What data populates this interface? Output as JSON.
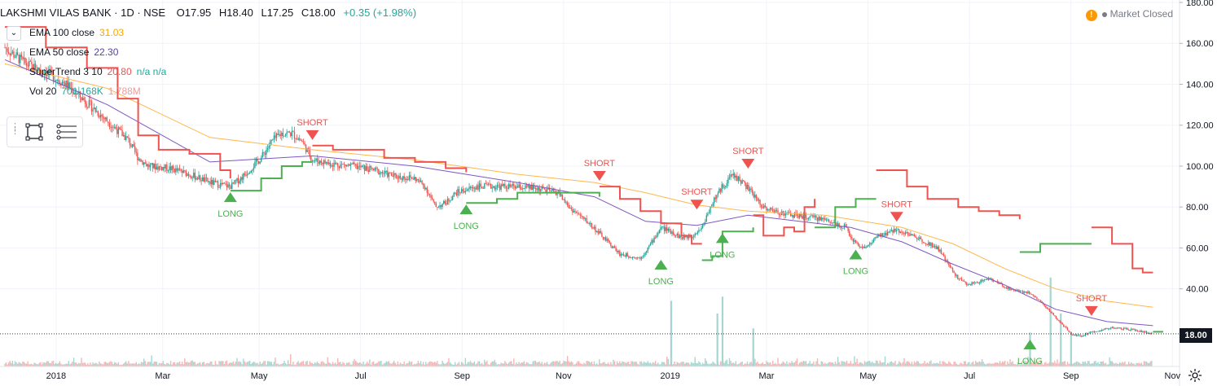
{
  "header": {
    "symbol": "LAKSHMI VILAS BANK · 1D · NSE",
    "open": "O17.95",
    "high": "H18.40",
    "low": "L17.25",
    "close": "C18.00",
    "change": "+0.35 (+1.98%)"
  },
  "indicators": [
    {
      "name": "EMA 100 close",
      "value": "31.03",
      "color": "#f6a800"
    },
    {
      "name": "EMA 50 close",
      "value": "22.30",
      "color": "#5b3fa6"
    },
    {
      "name": "SuperTrend 3 10",
      "value": "20.80",
      "extra": "n/a  n/a",
      "color": "#ef5350"
    },
    {
      "name": "Vol 20",
      "value": "701.168K",
      "extra": "1.788M",
      "color": "#26a69a",
      "extra_color": "#ef9a9a"
    }
  ],
  "market_status": "Market Closed",
  "last_price_label": "18.00",
  "colors": {
    "up": "#26a69a",
    "down": "#ef5350",
    "ema100": "#ffb74d",
    "ema50": "#7e57c2",
    "supertrend_down": "#ef5350",
    "supertrend_up": "#4caf50",
    "grid": "#f0f3fa"
  },
  "chart_data": {
    "type": "candlestick",
    "y_axis": {
      "ticks": [
        40,
        60,
        80,
        100,
        120,
        140,
        160,
        180
      ],
      "tick_labels": [
        "40.00",
        "60.00",
        "80.00",
        "100.00",
        "120.00",
        "140.00",
        "160.00",
        "180.00"
      ],
      "range": [
        14,
        180
      ]
    },
    "x_axis": {
      "tick_labels": [
        "2018",
        "Mar",
        "May",
        "Jul",
        "Sep",
        "Nov",
        "2019",
        "Mar",
        "May",
        "Jul",
        "Sep",
        "Nov"
      ]
    },
    "close_path": [
      [
        0,
        158
      ],
      [
        4,
        150
      ],
      [
        8,
        146
      ],
      [
        12,
        140
      ],
      [
        16,
        131
      ],
      [
        20,
        122
      ],
      [
        24,
        113
      ],
      [
        26,
        104
      ],
      [
        28,
        100
      ],
      [
        32,
        99
      ],
      [
        36,
        96
      ],
      [
        40,
        92
      ],
      [
        44,
        90
      ],
      [
        46,
        94
      ],
      [
        48,
        99
      ],
      [
        50,
        104
      ],
      [
        52,
        112
      ],
      [
        54,
        116
      ],
      [
        56,
        116
      ],
      [
        58,
        112
      ],
      [
        60,
        103
      ],
      [
        64,
        101
      ],
      [
        68,
        100
      ],
      [
        72,
        98
      ],
      [
        76,
        95
      ],
      [
        80,
        94
      ],
      [
        82,
        90
      ],
      [
        84,
        80
      ],
      [
        86,
        82
      ],
      [
        88,
        87
      ],
      [
        92,
        90
      ],
      [
        98,
        90
      ],
      [
        104,
        89
      ],
      [
        108,
        87
      ],
      [
        110,
        80
      ],
      [
        114,
        72
      ],
      [
        118,
        62
      ],
      [
        120,
        57
      ],
      [
        122,
        56
      ],
      [
        124,
        55
      ],
      [
        126,
        62
      ],
      [
        128,
        70
      ],
      [
        130,
        68
      ],
      [
        132,
        65
      ],
      [
        134,
        66
      ],
      [
        136,
        70
      ],
      [
        138,
        82
      ],
      [
        140,
        90
      ],
      [
        142,
        96
      ],
      [
        144,
        92
      ],
      [
        146,
        86
      ],
      [
        148,
        80
      ],
      [
        150,
        78
      ],
      [
        154,
        76
      ],
      [
        160,
        74
      ],
      [
        164,
        70
      ],
      [
        166,
        62
      ],
      [
        168,
        60
      ],
      [
        170,
        65
      ],
      [
        174,
        69
      ],
      [
        178,
        65
      ],
      [
        182,
        60
      ],
      [
        184,
        52
      ],
      [
        186,
        45
      ],
      [
        188,
        42
      ],
      [
        192,
        45
      ],
      [
        196,
        40
      ],
      [
        200,
        38
      ],
      [
        202,
        34
      ],
      [
        205,
        26
      ],
      [
        208,
        18
      ],
      [
        210,
        17
      ],
      [
        212,
        19
      ],
      [
        216,
        21
      ],
      [
        220,
        20
      ],
      [
        222,
        19
      ],
      [
        224,
        18
      ]
    ],
    "ema100": [
      [
        0,
        150
      ],
      [
        20,
        138
      ],
      [
        40,
        114
      ],
      [
        60,
        108
      ],
      [
        80,
        103
      ],
      [
        100,
        96
      ],
      [
        115,
        92
      ],
      [
        125,
        87
      ],
      [
        135,
        81
      ],
      [
        145,
        78
      ],
      [
        160,
        76
      ],
      [
        175,
        70
      ],
      [
        185,
        62
      ],
      [
        195,
        50
      ],
      [
        205,
        40
      ],
      [
        215,
        34
      ],
      [
        224,
        31
      ]
    ],
    "ema50": [
      [
        0,
        152
      ],
      [
        20,
        130
      ],
      [
        40,
        102
      ],
      [
        60,
        105
      ],
      [
        80,
        100
      ],
      [
        100,
        92
      ],
      [
        115,
        85
      ],
      [
        125,
        73
      ],
      [
        135,
        71
      ],
      [
        145,
        76
      ],
      [
        155,
        73
      ],
      [
        165,
        70
      ],
      [
        175,
        63
      ],
      [
        185,
        52
      ],
      [
        195,
        42
      ],
      [
        205,
        30
      ],
      [
        215,
        24
      ],
      [
        224,
        22
      ]
    ],
    "supertrend": [
      {
        "dir": "down",
        "pts": [
          [
            0,
            168
          ],
          [
            8,
            158
          ],
          [
            16,
            148
          ],
          [
            22,
            133
          ],
          [
            26,
            115
          ],
          [
            30,
            108
          ],
          [
            36,
            106
          ],
          [
            42,
            98
          ],
          [
            44,
            94
          ]
        ]
      },
      {
        "dir": "up",
        "pts": [
          [
            44,
            88
          ],
          [
            48,
            88
          ],
          [
            50,
            94
          ],
          [
            54,
            100
          ],
          [
            58,
            102
          ],
          [
            60,
            102
          ]
        ]
      },
      {
        "dir": "down",
        "pts": [
          [
            60,
            110
          ],
          [
            64,
            108
          ],
          [
            72,
            108
          ],
          [
            74,
            104
          ],
          [
            80,
            102
          ],
          [
            84,
            102
          ],
          [
            86,
            99
          ],
          [
            90,
            97
          ]
        ]
      },
      {
        "dir": "up",
        "pts": [
          [
            90,
            82
          ],
          [
            96,
            84
          ],
          [
            100,
            87
          ],
          [
            114,
            87
          ],
          [
            116,
            85
          ]
        ]
      },
      {
        "dir": "down",
        "pts": [
          [
            116,
            90
          ],
          [
            120,
            84
          ],
          [
            124,
            78
          ],
          [
            128,
            72
          ],
          [
            132,
            66
          ],
          [
            134,
            62
          ],
          [
            136,
            62
          ]
        ]
      },
      {
        "dir": "up",
        "pts": [
          [
            136,
            54
          ],
          [
            138,
            56
          ],
          [
            140,
            68
          ],
          [
            144,
            68
          ],
          [
            146,
            70
          ]
        ]
      },
      {
        "dir": "down",
        "pts": [
          [
            146,
            76
          ],
          [
            148,
            66
          ],
          [
            150,
            66
          ],
          [
            152,
            70
          ],
          [
            154,
            68
          ],
          [
            156,
            80
          ],
          [
            158,
            84
          ]
        ]
      },
      {
        "dir": "up",
        "pts": [
          [
            158,
            70
          ],
          [
            160,
            70
          ],
          [
            162,
            80
          ],
          [
            166,
            84
          ],
          [
            170,
            84
          ]
        ]
      },
      {
        "dir": "down",
        "pts": [
          [
            170,
            98
          ],
          [
            176,
            90
          ],
          [
            180,
            84
          ],
          [
            186,
            80
          ],
          [
            190,
            78
          ],
          [
            194,
            76
          ],
          [
            198,
            74
          ]
        ]
      },
      {
        "dir": "up",
        "pts": [
          [
            198,
            58
          ],
          [
            202,
            62
          ],
          [
            206,
            62
          ],
          [
            210,
            62
          ],
          [
            212,
            62
          ]
        ]
      },
      {
        "dir": "down",
        "pts": [
          [
            212,
            70
          ],
          [
            216,
            62
          ],
          [
            220,
            50
          ],
          [
            222,
            48
          ],
          [
            224,
            48
          ]
        ]
      },
      {
        "dir": "up",
        "pts": [
          [
            224,
            19
          ],
          [
            226,
            19
          ]
        ]
      }
    ],
    "signals": [
      {
        "type": "LONG",
        "x": 44,
        "price": 88
      },
      {
        "type": "SHORT",
        "x": 60,
        "price": 112
      },
      {
        "type": "LONG",
        "x": 90,
        "price": 82
      },
      {
        "type": "SHORT",
        "x": 116,
        "price": 92
      },
      {
        "type": "LONG",
        "x": 128,
        "price": 55
      },
      {
        "type": "SHORT",
        "x": 135,
        "price": 78
      },
      {
        "type": "LONG",
        "x": 140,
        "price": 68
      },
      {
        "type": "SHORT",
        "x": 145,
        "price": 98
      },
      {
        "type": "LONG",
        "x": 166,
        "price": 60
      },
      {
        "type": "SHORT",
        "x": 174,
        "price": 72
      },
      {
        "type": "LONG",
        "x": 200,
        "price": 16
      },
      {
        "type": "SHORT",
        "x": 212,
        "price": 26
      }
    ],
    "volume_spikes": [
      [
        130,
        3.1
      ],
      [
        139,
        2.5
      ],
      [
        140,
        3.3
      ],
      [
        146,
        1.8
      ],
      [
        200,
        1.6
      ],
      [
        204,
        4.2
      ],
      [
        206,
        2.5
      ],
      [
        208,
        1.6
      ]
    ]
  }
}
